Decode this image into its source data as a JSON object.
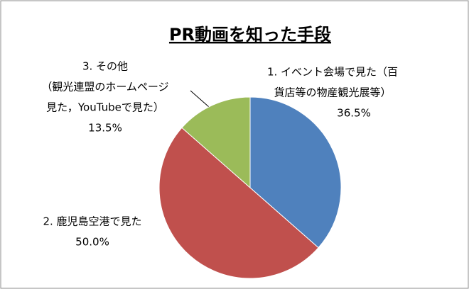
{
  "chart_data": {
    "type": "pie",
    "title": "PR動画を知った手段",
    "categories": [
      [
        "1. イベント会場で見た（百",
        "貨店等の物産観光展等）"
      ],
      [
        "2. 鹿児島空港で見た"
      ],
      [
        "3. その他",
        "（観光連盟のホームページ",
        "見た，YouTubeで見た）"
      ]
    ],
    "values": [
      36.5,
      50.0,
      13.5
    ],
    "value_labels": [
      "36.5%",
      "50.0%",
      "13.5%"
    ],
    "colors": [
      "#4f81bd",
      "#c0504d",
      "#9bbb59"
    ]
  }
}
